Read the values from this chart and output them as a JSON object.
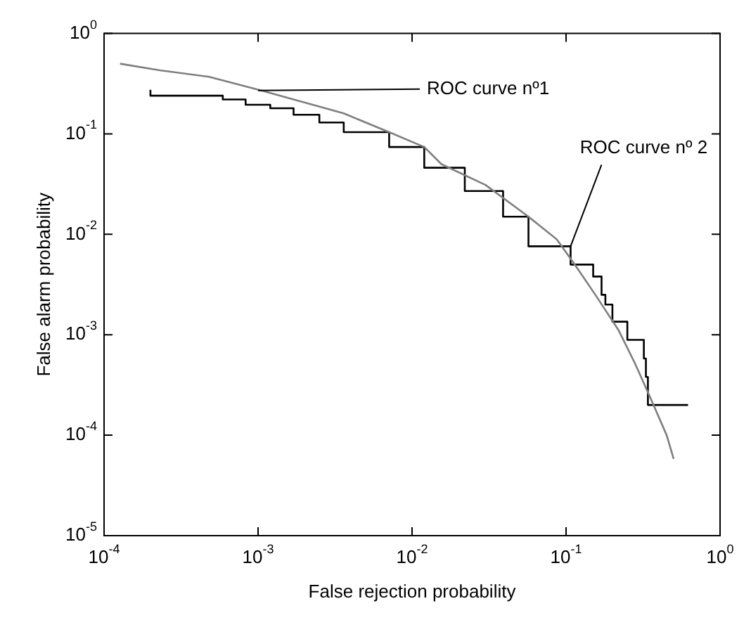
{
  "chart_data": {
    "type": "line",
    "xlabel": "False rejection probability",
    "ylabel": "False alarm probability",
    "log": "xy",
    "grid": false,
    "legend": false,
    "marker": "none",
    "line_style": "solid",
    "xlim": [
      0.0001,
      1
    ],
    "ylim": [
      1e-05,
      1
    ],
    "xticks": [
      {
        "value": 0.0001,
        "label": "10$^{-4}$"
      },
      {
        "value": 0.001,
        "label": "10$^{-3}$"
      },
      {
        "value": 0.01,
        "label": "10$^{-2}$"
      },
      {
        "value": 0.1,
        "label": "10$^{-1}$"
      },
      {
        "value": 1,
        "label": "10$^{0}$"
      }
    ],
    "yticks": [
      {
        "value": 1e-05,
        "label": "10$^{-5}$"
      },
      {
        "value": 0.0001,
        "label": "10$^{-4}$"
      },
      {
        "value": 0.001,
        "label": "10$^{-3}$"
      },
      {
        "value": 0.01,
        "label": "10$^{-2}$"
      },
      {
        "value": 0.1,
        "label": "10$^{-1}$"
      },
      {
        "value": 1,
        "label": "10$^{0}$"
      }
    ],
    "annotations": [
      {
        "text": "ROC curve nº1",
        "x": 0.001,
        "y": 0.27
      },
      {
        "text": "ROC curve nº 2",
        "x": 0.107,
        "y": 0.0076
      }
    ],
    "series": [
      {
        "color": "#7f7f7f",
        "x": [
          0.000127,
          0.00023,
          0.00048,
          0.00105,
          0.0036,
          0.0071,
          0.012,
          0.0155,
          0.03,
          0.057,
          0.087,
          0.112,
          0.155,
          0.22,
          0.28,
          0.36,
          0.45,
          0.5
        ],
        "values": [
          0.5,
          0.43,
          0.37,
          0.27,
          0.16,
          0.104,
          0.074,
          0.05,
          0.031,
          0.015,
          0.0089,
          0.0052,
          0.0025,
          0.0011,
          0.00052,
          0.00022,
          0.0001,
          5.8e-05
        ]
      },
      {
        "type": "step",
        "color": "#000000",
        "x": [
          0.0002,
          0.00059,
          0.00083,
          0.0012,
          0.0017,
          0.0025,
          0.0036,
          0.0071,
          0.012,
          0.022,
          0.039,
          0.057,
          0.107,
          0.15,
          0.17,
          0.18,
          0.2,
          0.25,
          0.32,
          0.33,
          0.34,
          0.44,
          0.62
        ],
        "values": [
          0.275,
          0.24,
          0.22,
          0.195,
          0.18,
          0.155,
          0.13,
          0.104,
          0.074,
          0.046,
          0.027,
          0.015,
          0.0076,
          0.005,
          0.0038,
          0.0025,
          0.002,
          0.00135,
          0.00089,
          0.00058,
          0.00038,
          0.0002,
          0.0002
        ]
      }
    ]
  }
}
